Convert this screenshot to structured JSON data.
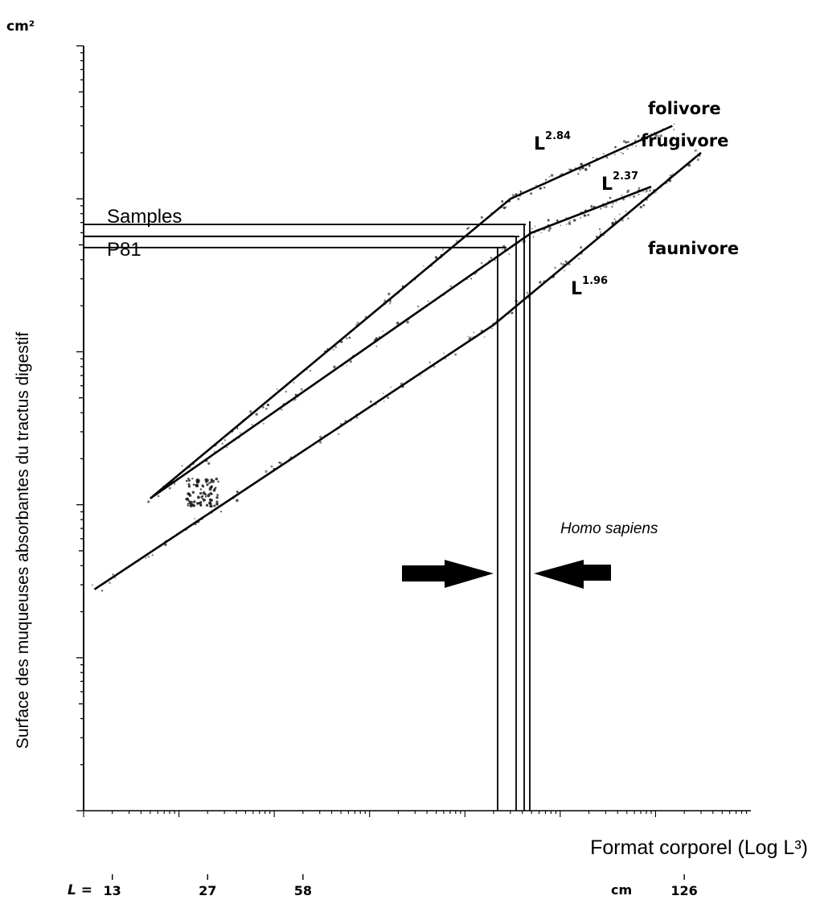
{
  "chart_data": {
    "type": "line",
    "x_scale": "log",
    "y_scale": "log",
    "y_unit": "cm²",
    "ylabel": "Surface des muqueuses absorbantes du tractus digestif",
    "xlabel": "Format corporel (Log L³)",
    "xlim": [
      1,
      10000000
    ],
    "ylim": [
      1,
      100000
    ],
    "L_scale": {
      "prefix": "L =",
      "unit": "cm",
      "ticks": [
        {
          "label": "13",
          "x": 2
        },
        {
          "label": "27",
          "x": 20
        },
        {
          "label": "58",
          "x": 200
        },
        {
          "label": "126",
          "x": 2000000
        }
      ]
    },
    "series": [
      {
        "name": "folivore",
        "exponent_label": "L",
        "exponent": "2.84",
        "points": [
          {
            "x": 5,
            "y": 110
          },
          {
            "x": 30000,
            "y": 10000
          },
          {
            "x": 1500000,
            "y": 30000
          }
        ]
      },
      {
        "name": "frugivore",
        "exponent_label": "L",
        "exponent": "2.37",
        "points": [
          {
            "x": 5,
            "y": 110
          },
          {
            "x": 50000,
            "y": 6000
          },
          {
            "x": 900000,
            "y": 12000
          }
        ]
      },
      {
        "name": "faunivore",
        "exponent_label": "L",
        "exponent": "1.96",
        "points": [
          {
            "x": 1.3,
            "y": 28
          },
          {
            "x": 20000,
            "y": 1500
          },
          {
            "x": 3000000,
            "y": 20000
          }
        ]
      }
    ],
    "annotations": [
      {
        "text": "Samples",
        "y": 6800
      },
      {
        "text": "P81",
        "y": 4800
      },
      {
        "text": "Homo sapiens"
      }
    ]
  }
}
